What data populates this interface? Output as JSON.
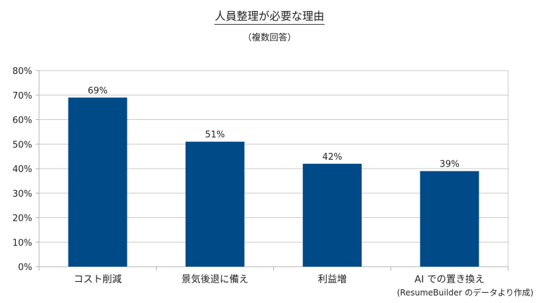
{
  "chart_data": {
    "type": "bar",
    "title": "人員整理が必要な理由",
    "subtitle": "（複数回答）",
    "categories": [
      "コスト削減",
      "景気後退に備え",
      "利益増",
      "AI での置き換え"
    ],
    "series": [
      {
        "values": [
          69,
          51,
          42,
          39
        ]
      }
    ],
    "data_labels": [
      "69%",
      "51%",
      "42%",
      "39%"
    ],
    "ylim": [
      0,
      80
    ],
    "y_ticks": [
      0,
      10,
      20,
      30,
      40,
      50,
      60,
      70,
      80
    ],
    "y_tick_labels": [
      "0%",
      "10%",
      "20%",
      "30%",
      "40%",
      "50%",
      "60%",
      "70%",
      "80%"
    ],
    "xlabel": "",
    "ylabel": "",
    "grid": true,
    "bar_color": "#004a87",
    "grid_color": "#c8c8c8",
    "source_note": "(ResumeBuilder のデータより作成)"
  }
}
